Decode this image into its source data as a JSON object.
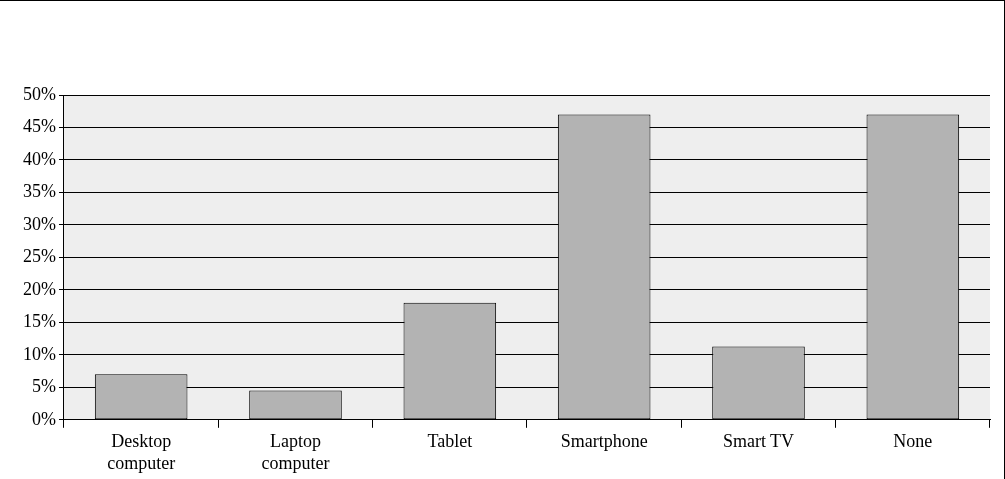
{
  "chart_data": {
    "type": "bar",
    "categories": [
      "Desktop computer",
      "Laptop computer",
      "Tablet",
      "Smartphone",
      "Smart TV",
      "None"
    ],
    "values": [
      7,
      4.5,
      18,
      47,
      11.3,
      47
    ],
    "color": "#b3b3b3",
    "ylim": [
      0,
      50
    ],
    "yticks": [
      {
        "value": 0,
        "label": "0%"
      },
      {
        "value": 5,
        "label": "5%"
      },
      {
        "value": 10,
        "label": "10%"
      },
      {
        "value": 15,
        "label": "15%"
      },
      {
        "value": 20,
        "label": "20%"
      },
      {
        "value": 25,
        "label": "25%"
      },
      {
        "value": 30,
        "label": "30%"
      },
      {
        "value": 35,
        "label": "35%"
      },
      {
        "value": 40,
        "label": "40%"
      },
      {
        "value": 45,
        "label": "45%"
      },
      {
        "value": 50,
        "label": "50%"
      }
    ],
    "grid": "y",
    "legend": false
  }
}
